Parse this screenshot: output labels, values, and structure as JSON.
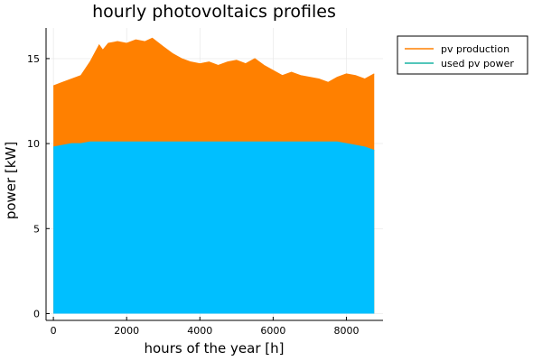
{
  "chart_data": {
    "type": "area",
    "title": "hourly photovoltaics profiles",
    "xlabel": "hours of the year [h]",
    "ylabel": "power [kW]",
    "xlim": [
      -200,
      9000
    ],
    "ylim": [
      -0.4,
      16.8
    ],
    "xticks": [
      0,
      2000,
      4000,
      6000,
      8000
    ],
    "xtick_labels": [
      "0",
      "2000",
      "4000",
      "6000",
      "8000"
    ],
    "yticks": [
      0,
      5,
      10,
      15
    ],
    "ytick_labels": [
      "0",
      "5",
      "10",
      "15"
    ],
    "grid": true,
    "legend_position": "outer top-right",
    "x": [
      0,
      250,
      500,
      750,
      1000,
      1150,
      1250,
      1350,
      1500,
      1750,
      2000,
      2250,
      2500,
      2700,
      3000,
      3250,
      3500,
      3750,
      4000,
      4250,
      4500,
      4750,
      5000,
      5250,
      5500,
      5750,
      6000,
      6250,
      6500,
      6750,
      7000,
      7250,
      7500,
      7750,
      8000,
      8250,
      8500,
      8760
    ],
    "series": [
      {
        "name": "pv production",
        "color": "#ff8000",
        "values": [
          13.4,
          13.6,
          13.8,
          14.0,
          14.8,
          15.4,
          15.8,
          15.5,
          15.9,
          16.0,
          15.9,
          16.1,
          16.0,
          16.2,
          15.7,
          15.3,
          15.0,
          14.8,
          14.7,
          14.8,
          14.6,
          14.8,
          14.9,
          14.7,
          15.0,
          14.6,
          14.3,
          14.0,
          14.2,
          14.0,
          13.9,
          13.8,
          13.6,
          13.9,
          14.1,
          14.0,
          13.8,
          14.1
        ]
      },
      {
        "name": "used pv power",
        "color": "#00bfff",
        "legend_color": "#18b4a4",
        "values": [
          9.8,
          9.9,
          10.0,
          10.0,
          10.1,
          10.1,
          10.1,
          10.1,
          10.1,
          10.1,
          10.1,
          10.1,
          10.1,
          10.1,
          10.1,
          10.1,
          10.1,
          10.1,
          10.1,
          10.1,
          10.1,
          10.1,
          10.1,
          10.1,
          10.1,
          10.1,
          10.1,
          10.1,
          10.1,
          10.1,
          10.1,
          10.1,
          10.1,
          10.1,
          10.0,
          9.9,
          9.8,
          9.6
        ]
      }
    ]
  }
}
